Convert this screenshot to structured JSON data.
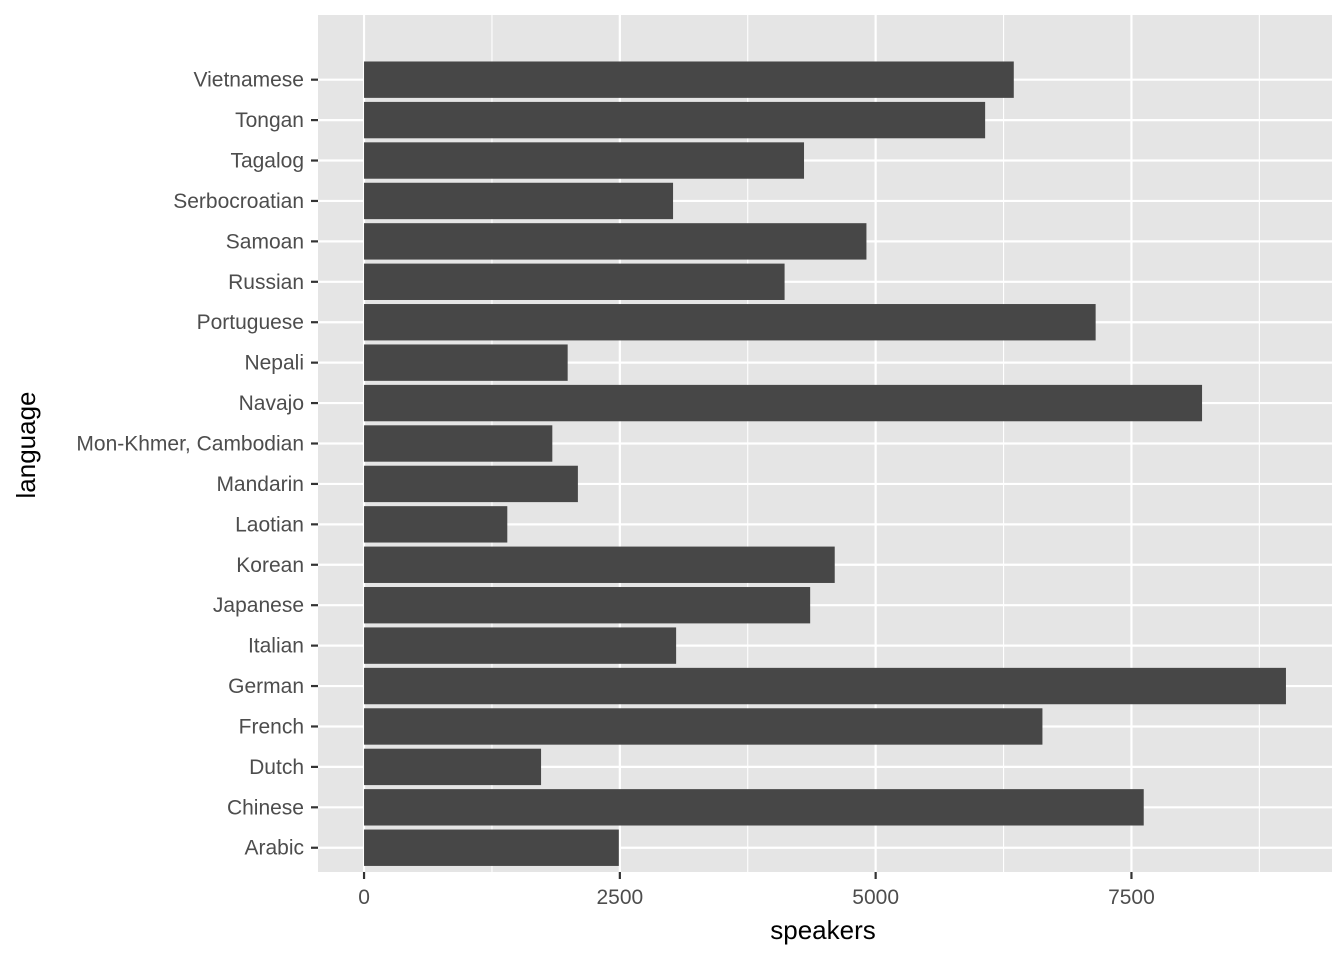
{
  "chart_data": {
    "type": "bar",
    "orientation": "horizontal",
    "categories": [
      "Arabic",
      "Chinese",
      "Dutch",
      "French",
      "German",
      "Italian",
      "Japanese",
      "Korean",
      "Laotian",
      "Mandarin",
      "Mon-Khmer, Cambodian",
      "Navajo",
      "Nepali",
      "Portuguese",
      "Russian",
      "Samoan",
      "Serbocroatian",
      "Tagalog",
      "Tongan",
      "Vietnamese"
    ],
    "values": [
      2490,
      7620,
      1730,
      6630,
      9010,
      3050,
      4360,
      4600,
      1400,
      2090,
      1840,
      8190,
      1990,
      7150,
      4110,
      4910,
      3020,
      4300,
      6070,
      6350
    ],
    "xlabel": "speakers",
    "ylabel": "language",
    "xlim": [
      -450,
      9460
    ],
    "x_ticks": [
      0,
      2500,
      5000,
      7500
    ],
    "x_tick_labels": [
      "0",
      "2500",
      "5000",
      "7500"
    ],
    "x_minor_ticks": [
      1250,
      3750,
      6250,
      8750
    ],
    "grid": true,
    "legend": "none",
    "colors": {
      "bar": "#474747",
      "panel": "#e5e5e5",
      "grid": "#ffffff"
    }
  }
}
